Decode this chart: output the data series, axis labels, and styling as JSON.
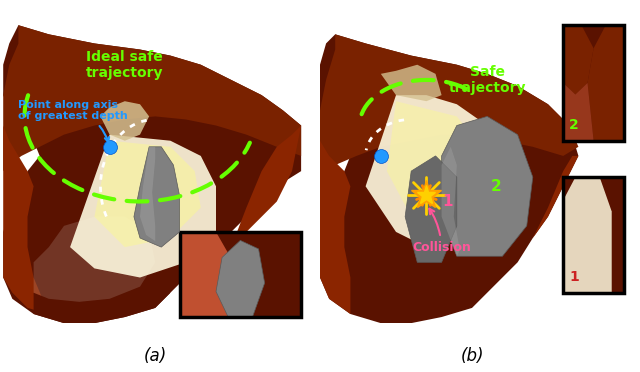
{
  "figure_width": 6.4,
  "figure_height": 3.72,
  "dpi": 100,
  "bg": "#ffffff",
  "dark_brown": "#5a1200",
  "med_brown": "#7a2200",
  "rich_brown": "#8B2500",
  "light_brown": "#a03520",
  "pale_brown": "#c05030",
  "cream": "#FFFAE0",
  "cream2": "#FFF5C0",
  "cream_tan": "#D4C090",
  "gray_dark": "#5a5a5a",
  "gray_med": "#808080",
  "gray_light": "#a8a8a8",
  "green": "#66ff00",
  "white": "#ffffff",
  "blue": "#2299ff",
  "pink": "#ff5599",
  "gold": "#FFD000",
  "orange_gold": "#FFA000",
  "black": "#000000",
  "panel_a_label": "(a)",
  "panel_b_label": "(b)",
  "traj_a_label": "Ideal safe\ntrajectory",
  "point_label": "Point along axis\nof greatest depth",
  "traj_b_label": "Safe\ntrajectory",
  "collision_label": "Collision"
}
